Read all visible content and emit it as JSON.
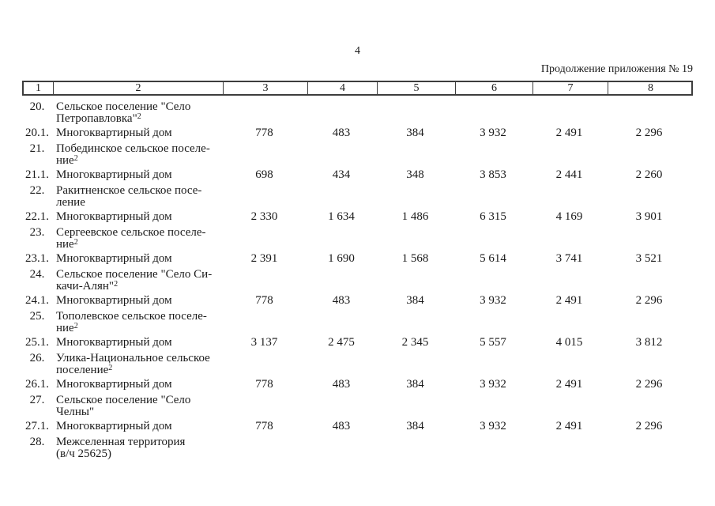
{
  "page": {
    "number": "4",
    "continuation": "Продолжение приложения № 19"
  },
  "colors": {
    "background": "#ffffff",
    "text": "#1a1a1a",
    "table_border": "#3d3d3d"
  },
  "table": {
    "header": [
      "1",
      "2",
      "3",
      "4",
      "5",
      "6",
      "7",
      "8"
    ],
    "sections": [
      {
        "num": "20.",
        "lines": [
          "Сельское поселение \"Село",
          "Петропавловка\""
        ],
        "sup": "2",
        "sub": {
          "num": "20.1.",
          "label": "Многоквартирный дом",
          "values": [
            "778",
            "483",
            "384",
            "3 932",
            "2 491",
            "2 296"
          ]
        }
      },
      {
        "num": "21.",
        "lines": [
          "Побединское сельское поселе-",
          "ние"
        ],
        "sup": "2",
        "sub": {
          "num": "21.1.",
          "label": "Многоквартирный дом",
          "values": [
            "698",
            "434",
            "348",
            "3 853",
            "2 441",
            "2 260"
          ]
        }
      },
      {
        "num": "22.",
        "lines": [
          "Ракитненское сельское посе-",
          "ление"
        ],
        "sup": "",
        "sub": {
          "num": "22.1.",
          "label": "Многоквартирный дом",
          "values": [
            "2 330",
            "1 634",
            "1 486",
            "6 315",
            "4 169",
            "3 901"
          ]
        }
      },
      {
        "num": "23.",
        "lines": [
          "Сергеевское сельское поселе-",
          "ние"
        ],
        "sup": "2",
        "sub": {
          "num": "23.1.",
          "label": "Многоквартирный дом",
          "values": [
            "2 391",
            "1 690",
            "1 568",
            "5 614",
            "3 741",
            "3 521"
          ]
        }
      },
      {
        "num": "24.",
        "lines": [
          "Сельское поселение \"Село Си-",
          "качи-Алян\""
        ],
        "sup": "2",
        "sub": {
          "num": "24.1.",
          "label": "Многоквартирный дом",
          "values": [
            "778",
            "483",
            "384",
            "3 932",
            "2 491",
            "2 296"
          ]
        }
      },
      {
        "num": "25.",
        "lines": [
          "Тополевское сельское поселе-",
          "ние"
        ],
        "sup": "2",
        "sub": {
          "num": "25.1.",
          "label": "Многоквартирный дом",
          "values": [
            "3 137",
            "2 475",
            "2 345",
            "5 557",
            "4 015",
            "3 812"
          ]
        }
      },
      {
        "num": "26.",
        "lines": [
          "Улика-Национальное сельское",
          "поселение"
        ],
        "sup": "2",
        "sub": {
          "num": "26.1.",
          "label": "Многоквартирный дом",
          "values": [
            "778",
            "483",
            "384",
            "3 932",
            "2 491",
            "2 296"
          ]
        }
      },
      {
        "num": "27.",
        "lines": [
          "Сельское поселение \"Село",
          "Челны\""
        ],
        "sup": "",
        "sub": {
          "num": "27.1.",
          "label": "Многоквартирный дом",
          "values": [
            "778",
            "483",
            "384",
            "3 932",
            "2 491",
            "2 296"
          ]
        }
      },
      {
        "num": "28.",
        "lines": [
          "Межселенная территория",
          "(в/ч 25625)"
        ],
        "sup": "",
        "sub": null
      }
    ]
  }
}
